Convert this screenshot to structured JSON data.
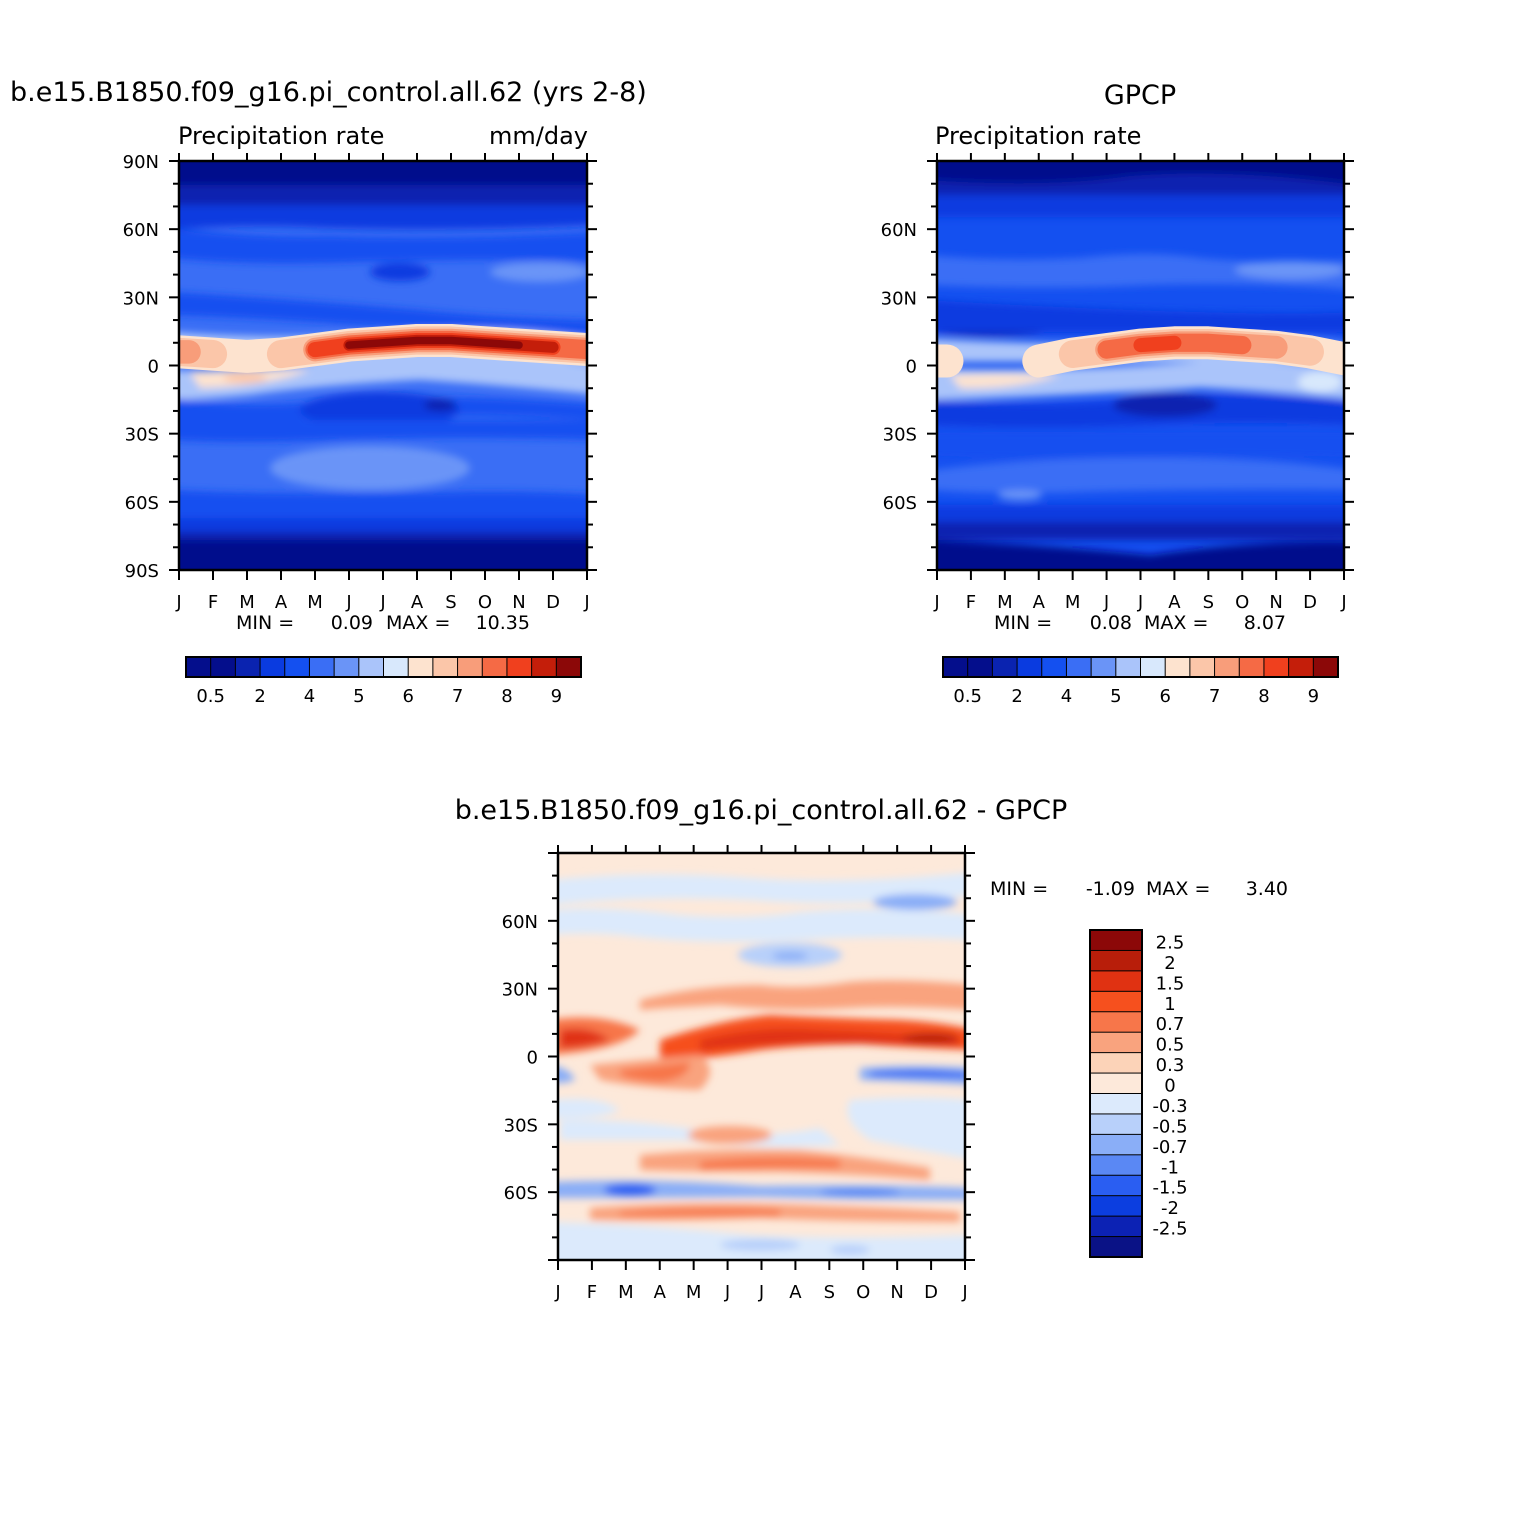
{
  "palettes": {
    "abs": [
      "#040e8c",
      "#0a23b0",
      "#0a3be0",
      "#1450f0",
      "#3a6ef5",
      "#6a94f7",
      "#aac4fa",
      "#d8e8fc",
      "#fde3cf",
      "#fbc6a9",
      "#f89d7a",
      "#f56a45",
      "#f0401e",
      "#c41e0a",
      "#8c0808"
    ],
    "diff": [
      "#8c0808",
      "#b81e0a",
      "#e03212",
      "#f6501e",
      "#f7764a",
      "#f9a37e",
      "#fcd3b8",
      "#fde9da",
      "#dceafc",
      "#b8d0fa",
      "#8aaef7",
      "#5a88f4",
      "#2a5ef2",
      "#0c3ee0",
      "#0c22b4",
      "#0a1286"
    ]
  },
  "months": [
    "J",
    "F",
    "M",
    "A",
    "M",
    "J",
    "J",
    "A",
    "S",
    "O",
    "N",
    "D",
    "J"
  ],
  "panels": [
    {
      "id": "model",
      "title": "b.e15.B1850.f09_g16.pi_control.all.62 (yrs 2-8)",
      "left_label": "Precipitation rate",
      "right_label": "mm/day",
      "lat_labels": [
        "90N",
        "60N",
        "30N",
        "0",
        "30S",
        "60S",
        "90S"
      ],
      "stats": {
        "min_label": "MIN =",
        "min": "0.09",
        "max_label": "MAX =",
        "max": "10.35"
      },
      "colorbar_labels": [
        "0.5",
        "2",
        "4",
        "5",
        "6",
        "7",
        "8",
        "9"
      ]
    },
    {
      "id": "gpcp",
      "title": "GPCP",
      "left_label": "Precipitation rate",
      "right_label": "",
      "lat_labels": [
        "60N",
        "30N",
        "0",
        "30S",
        "60S"
      ],
      "stats": {
        "min_label": "MIN =",
        "min": "0.08",
        "max_label": "MAX =",
        "max": "8.07"
      },
      "colorbar_labels": [
        "0.5",
        "2",
        "4",
        "5",
        "6",
        "7",
        "8",
        "9"
      ]
    },
    {
      "id": "diff",
      "title": "b.e15.B1850.f09_g16.pi_control.all.62 - GPCP",
      "left_label": "",
      "right_label": "",
      "lat_labels": [
        "60N",
        "30N",
        "0",
        "30S",
        "60S"
      ],
      "stats": {
        "min_label": "MIN =",
        "min": "-1.09",
        "max_label": "MAX =",
        "max": "3.40"
      },
      "colorbar_labels": [
        "2.5",
        "2",
        "1.5",
        "1",
        "0.7",
        "0.5",
        "0.3",
        "0",
        "-0.3",
        "-0.5",
        "-0.7",
        "-1",
        "-1.5",
        "-2",
        "-2.5"
      ]
    }
  ],
  "chart_data": [
    {
      "type": "heatmap",
      "title": "b.e15.B1850.f09_g16.pi_control.all.62 (yrs 2-8)",
      "variable": "Precipitation rate",
      "units": "mm/day",
      "x_categories": [
        "J",
        "F",
        "M",
        "A",
        "M",
        "J",
        "J",
        "A",
        "S",
        "O",
        "N",
        "D",
        "J"
      ],
      "y_ticks": [
        "90N",
        "60N",
        "30N",
        "0",
        "30S",
        "60S",
        "90S"
      ],
      "ylim": [
        -90,
        90
      ],
      "levels": [
        0.5,
        1,
        2,
        3,
        4,
        5,
        5.5,
        6,
        6.5,
        7,
        7.5,
        8,
        8.5,
        9
      ],
      "min": 0.09,
      "max": 10.35,
      "features": {
        "itcz_lat_by_month": [
          6,
          5,
          4,
          5,
          7,
          9,
          10,
          11,
          11,
          10,
          9,
          8,
          7
        ],
        "itcz_peak_by_month": [
          7,
          6.5,
          6,
          6.5,
          8,
          10,
          10.3,
          10.35,
          10,
          9.5,
          9,
          8.5,
          7.5
        ]
      }
    },
    {
      "type": "heatmap",
      "title": "GPCP",
      "variable": "Precipitation rate",
      "x_categories": [
        "J",
        "F",
        "M",
        "A",
        "M",
        "J",
        "J",
        "A",
        "S",
        "O",
        "N",
        "D",
        "J"
      ],
      "y_ticks": [
        "60N",
        "30N",
        "0",
        "30S",
        "60S"
      ],
      "ylim": [
        -90,
        90
      ],
      "levels": [
        0.5,
        1,
        2,
        3,
        4,
        5,
        5.5,
        6,
        6.5,
        7,
        7.5,
        8,
        8.5,
        9
      ],
      "min": 0.08,
      "max": 8.07,
      "features": {
        "itcz_lat_by_month": [
          2,
          1,
          0,
          2,
          5,
          7,
          9,
          10,
          10,
          9,
          8,
          6,
          3
        ],
        "itcz_peak_by_month": [
          6,
          5.5,
          5.5,
          6,
          6.8,
          7.5,
          8,
          8.07,
          7.8,
          7.5,
          7,
          6.5,
          6
        ]
      }
    },
    {
      "type": "heatmap",
      "title": "b.e15.B1850.f09_g16.pi_control.all.62 - GPCP",
      "x_categories": [
        "J",
        "F",
        "M",
        "A",
        "M",
        "J",
        "J",
        "A",
        "S",
        "O",
        "N",
        "D",
        "J"
      ],
      "y_ticks": [
        "60N",
        "30N",
        "0",
        "30S",
        "60S"
      ],
      "ylim": [
        -90,
        90
      ],
      "levels": [
        -2.5,
        -2,
        -1.5,
        -1,
        -0.7,
        -0.5,
        -0.3,
        0,
        0.3,
        0.5,
        0.7,
        1,
        1.5,
        2,
        2.5
      ],
      "min": -1.09,
      "max": 3.4
    }
  ]
}
